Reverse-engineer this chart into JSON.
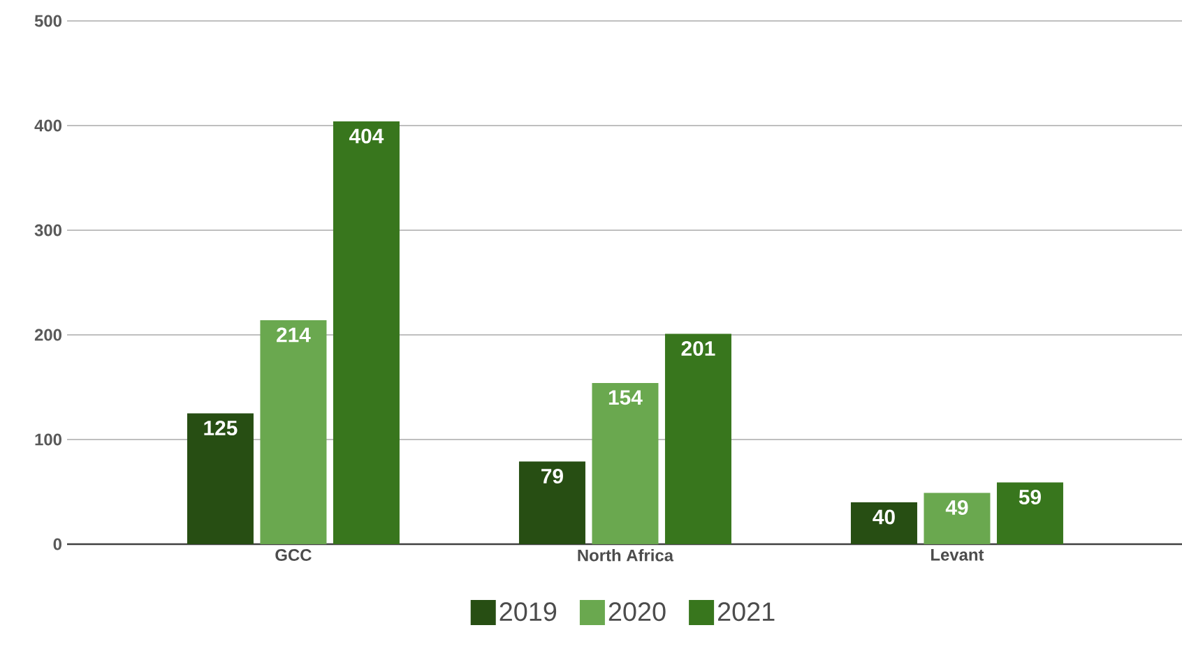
{
  "chart_data": {
    "type": "bar",
    "categories": [
      "GCC",
      "North Africa",
      "Levant"
    ],
    "series": [
      {
        "name": "2019",
        "color": "#274e13",
        "values": [
          125,
          79,
          40
        ]
      },
      {
        "name": "2020",
        "color": "#6aa84f",
        "values": [
          214,
          154,
          49
        ]
      },
      {
        "name": "2021",
        "color": "#38761d",
        "values": [
          404,
          201,
          59
        ]
      }
    ],
    "ylim": [
      0,
      500
    ],
    "yticks": [
      0,
      100,
      200,
      300,
      400,
      500
    ],
    "grid": "y",
    "legend": "bottom",
    "data_labels": true
  }
}
